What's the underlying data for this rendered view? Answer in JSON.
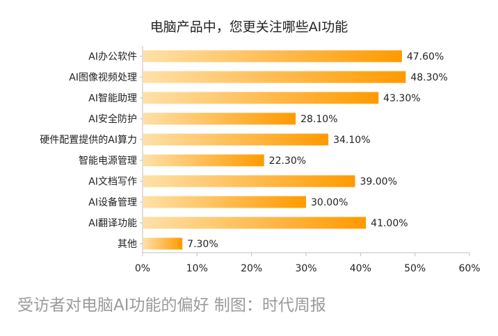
{
  "colors": {
    "bar_start": "#FFE0A8",
    "bar_end": "#FF9A00",
    "axis": "#BFBFBF",
    "text": "#222222",
    "caption": "#9A9A9A"
  },
  "caption": "受访者对电脑AI功能的偏好 制图：时代周报",
  "chart_data": {
    "type": "bar",
    "orientation": "horizontal",
    "title": "电脑产品中，您更关注哪些AI功能",
    "categories": [
      "AI办公软件",
      "AI图像视频处理",
      "AI智能助理",
      "AI安全防护",
      "硬件配置提供的AI算力",
      "智能电源管理",
      "AI文档写作",
      "AI设备管理",
      "AI翻译功能",
      "其他"
    ],
    "values": [
      47.6,
      48.3,
      43.3,
      28.1,
      34.1,
      22.3,
      39.0,
      30.0,
      41.0,
      7.3
    ],
    "value_labels": [
      "47.60%",
      "48.30%",
      "43.30%",
      "28.10%",
      "34.10%",
      "22.30%",
      "39.00%",
      "30.00%",
      "41.00%",
      "7.30%"
    ],
    "xlim": [
      0,
      60
    ],
    "x_ticks": [
      0,
      10,
      20,
      30,
      40,
      50,
      60
    ],
    "x_tick_labels": [
      "0%",
      "10%",
      "20%",
      "30%",
      "40%",
      "50%",
      "60%"
    ],
    "grid": false,
    "legend": "none"
  }
}
